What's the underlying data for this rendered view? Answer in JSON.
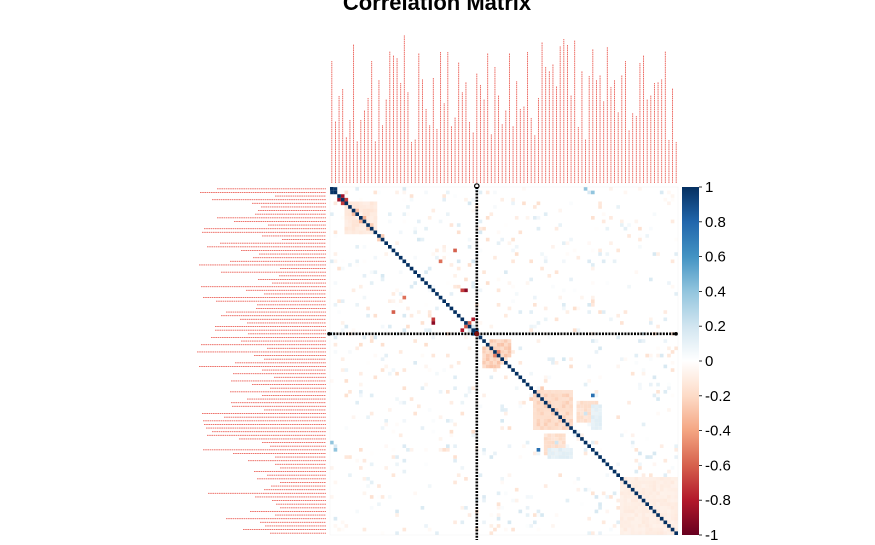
{
  "chart_data": {
    "type": "heatmap",
    "title": "Correlation Matrix",
    "xlabel": "",
    "ylabel": "",
    "variable_count": 96,
    "colorbar": {
      "range": [
        -1,
        1
      ],
      "ticks": [
        "1",
        "0.8",
        "0.6",
        "0.4",
        "0.2",
        "0",
        "-0.2",
        "-0.4",
        "-0.6",
        "-0.8",
        "-1"
      ],
      "colors": [
        "#67001f",
        "#b2182b",
        "#d6604d",
        "#f4a582",
        "#fddbc7",
        "#ffffff",
        "#d1e5f0",
        "#92c5de",
        "#4393c3",
        "#2166ac",
        "#053061"
      ]
    },
    "label_color": "#e8453c",
    "diagonal": 1,
    "highlighted_variable_index": 40,
    "notable_cells": [
      {
        "row": 0,
        "col": 1,
        "value": 0.98
      },
      {
        "row": 2,
        "col": 3,
        "value": -0.85
      },
      {
        "row": 3,
        "col": 4,
        "value": -0.7
      },
      {
        "row": 6,
        "col": 7,
        "value": -0.3
      },
      {
        "row": 8,
        "col": 9,
        "value": -0.35
      },
      {
        "row": 10,
        "col": 11,
        "value": -0.25
      },
      {
        "row": 13,
        "col": 14,
        "value": -0.25
      },
      {
        "row": 28,
        "col": 36,
        "value": -0.7
      },
      {
        "row": 28,
        "col": 37,
        "value": -0.9
      },
      {
        "row": 37,
        "col": 38,
        "value": -0.6
      },
      {
        "row": 39,
        "col": 40,
        "value": 0.9
      },
      {
        "row": 36,
        "col": 39,
        "value": -0.8
      },
      {
        "row": 20,
        "col": 30,
        "value": -0.55
      },
      {
        "row": 17,
        "col": 34,
        "value": -0.6
      },
      {
        "row": 45,
        "col": 46,
        "value": -0.5
      },
      {
        "row": 57,
        "col": 72,
        "value": 0.75
      },
      {
        "row": 55,
        "col": 58,
        "value": -0.25
      },
      {
        "row": 70,
        "col": 0,
        "value": 0.4
      },
      {
        "row": 62,
        "col": 70,
        "value": 0.2
      },
      {
        "row": 1,
        "col": 72,
        "value": 0.4
      }
    ],
    "correlation_blocks": [
      {
        "rows": [
          56,
          66
        ],
        "cols": [
          56,
          66
        ],
        "value": -0.25
      },
      {
        "rows": [
          80,
          95
        ],
        "cols": [
          80,
          95
        ],
        "value": -0.12
      },
      {
        "rows": [
          59,
          64
        ],
        "cols": [
          68,
          73
        ],
        "value": -0.2
      },
      {
        "rows": [
          60,
          66
        ],
        "cols": [
          72,
          74
        ],
        "value": 0.15
      },
      {
        "rows": [
          4,
          12
        ],
        "cols": [
          4,
          12
        ],
        "value": -0.15
      },
      {
        "rows": [
          42,
          46
        ],
        "cols": [
          44,
          49
        ],
        "value": -0.3
      }
    ]
  }
}
